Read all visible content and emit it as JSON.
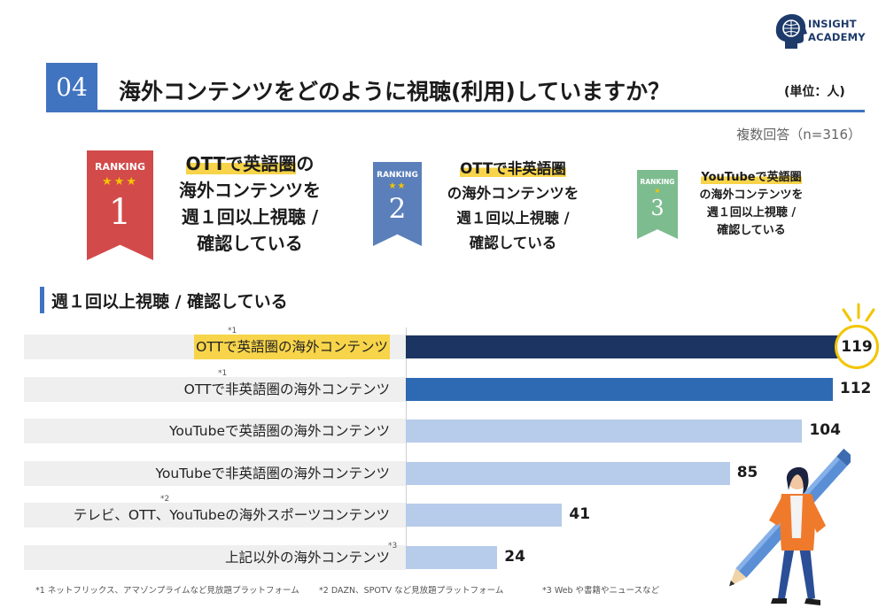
{
  "logo": {
    "line1": "INSIGHT",
    "line2": "ACADEMY"
  },
  "header": {
    "number": "04",
    "title": "海外コンテンツをどのように視聴(利用)していますか？",
    "unit": "(単位：人)",
    "respondents": "複数回答（n=316）"
  },
  "ranking": [
    {
      "label": "RANKING",
      "stars": "★★★",
      "rank": "1",
      "highlight": "OTTで英語圏",
      "rest1": "の",
      "line2": "海外コンテンツを",
      "line3": "週１回以上視聴 /",
      "line4": "確認している"
    },
    {
      "label": "RANKING",
      "stars": "★★",
      "rank": "2",
      "highlight": "OTTで非英語圏",
      "line2": "の海外コンテンツを",
      "line3": "週１回以上視聴 /",
      "line4": "確認している"
    },
    {
      "label": "RANKING",
      "stars": "★",
      "rank": "3",
      "highlight": "YouTubeで英語圏",
      "line2": "の海外コンテンツを",
      "line3": "週１回以上視聴 /",
      "line4": "確認している"
    }
  ],
  "subtitle": "週１回以上視聴 / 確認している",
  "chart_data": {
    "type": "bar",
    "orientation": "horizontal",
    "categories": [
      "OTTで英語圏の海外コンテンツ",
      "OTTで非英語圏の海外コンテンツ",
      "YouTubeで英語圏の海外コンテンツ",
      "YouTubeで非英語圏の海外コンテンツ",
      "テレビ、OTT、YouTubeの海外スポーツコンテンツ",
      "上記以外の海外コンテンツ"
    ],
    "category_notes": [
      "*1",
      "*1",
      "",
      "",
      "*2",
      "*3"
    ],
    "values": [
      119,
      112,
      104,
      85,
      41,
      24
    ],
    "colors": [
      "#1c3462",
      "#2e6ab3",
      "#b7cbea",
      "#b7cbea",
      "#b7cbea",
      "#b7cbea"
    ],
    "highlight_color": "#f7d44a",
    "xlim": [
      0,
      119
    ]
  },
  "footnotes": [
    "*1 ネットフリックス、アマゾンプライムなど見放題プラットフォーム",
    "*2 DAZN、SPOTV など見放題プラットフォーム",
    "*3 Web や書籍やニュースなど"
  ]
}
